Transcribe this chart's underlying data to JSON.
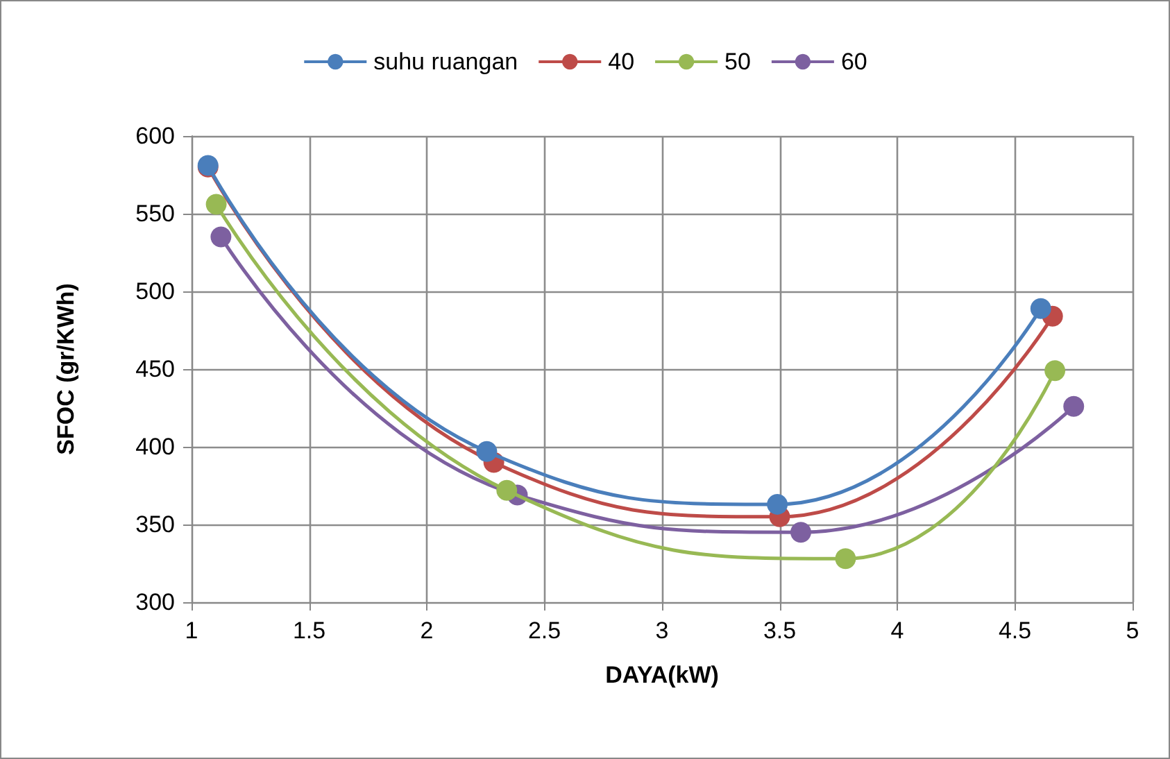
{
  "chart_data": {
    "type": "line",
    "xlabel": "DAYA(kW)",
    "ylabel": "SFOC (gr/KWh)",
    "xlim": [
      1,
      5
    ],
    "xticks": [
      1,
      1.5,
      2,
      2.5,
      3,
      3.5,
      4,
      4.5,
      5
    ],
    "ylim": [
      300,
      600
    ],
    "yticks": [
      300,
      350,
      400,
      450,
      500,
      550,
      600
    ],
    "grid": true,
    "legend": "top",
    "marker": "circle",
    "line_style": "solid",
    "series": [
      {
        "name": "suhu ruangan",
        "color": "#4a7ebb",
        "x": [
          1.07,
          2.255,
          3.49,
          4.61
        ],
        "values": [
          581,
          397,
          363,
          489
        ]
      },
      {
        "name": "40",
        "color": "#be4b48",
        "x": [
          1.07,
          2.285,
          3.5,
          4.66
        ],
        "values": [
          580,
          390,
          355,
          484
        ]
      },
      {
        "name": "50",
        "color": "#98b954",
        "x": [
          1.105,
          2.34,
          3.78,
          4.67
        ],
        "values": [
          556,
          372,
          328,
          449
        ]
      },
      {
        "name": "60",
        "color": "#7d60a0",
        "x": [
          1.125,
          2.385,
          3.59,
          4.75
        ],
        "values": [
          535,
          369,
          345,
          426
        ]
      }
    ]
  }
}
